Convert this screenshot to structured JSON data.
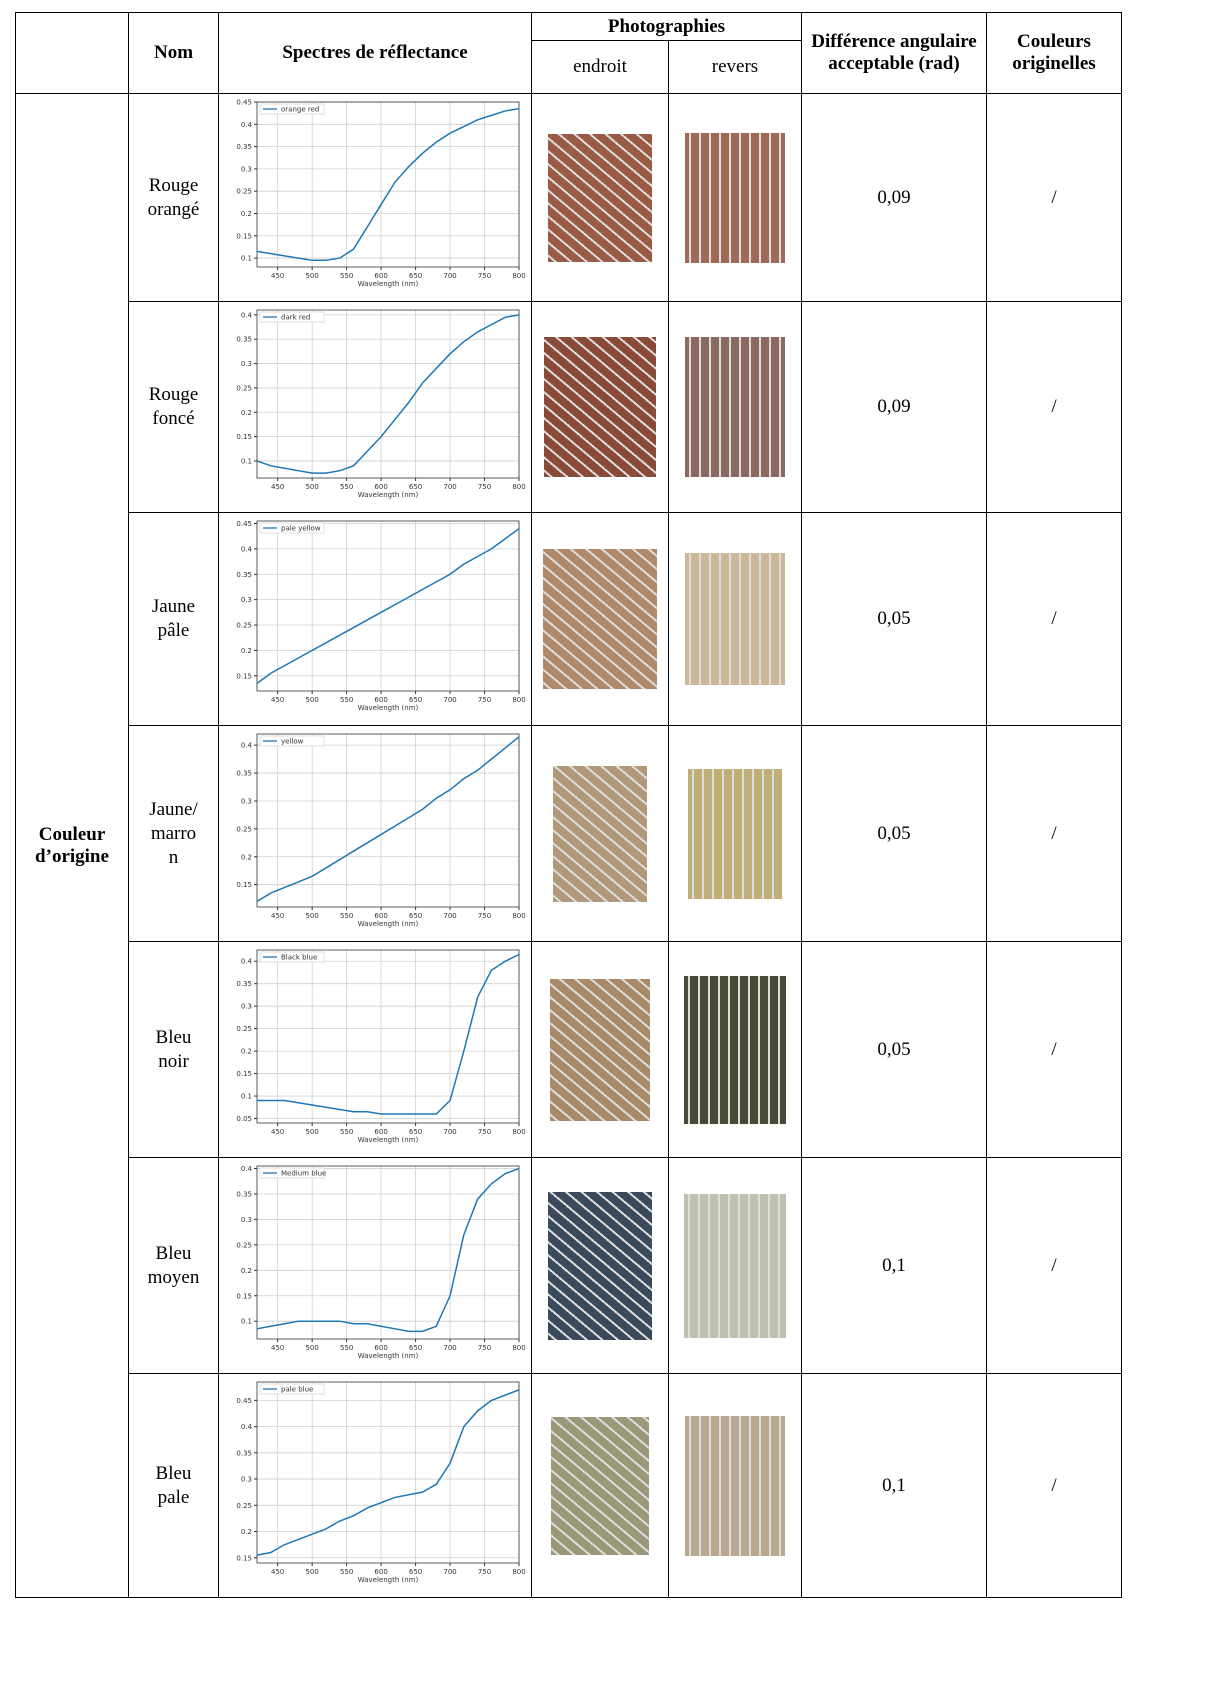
{
  "header": {
    "name": "Nom",
    "spectra": "Spectres de réflectance",
    "photos": "Photographies",
    "front": "endroit",
    "back": "revers",
    "difference": "Différence angulaire acceptable (rad)",
    "original": "Couleurs originelles"
  },
  "group": "Couleur d’origine",
  "rows": [
    {
      "name": "Rouge orangé",
      "difference": "0,09",
      "original": "/",
      "chart_data": {
        "type": "line",
        "xlabel": "Wavelength (nm)",
        "x": [
          420,
          440,
          460,
          480,
          500,
          520,
          540,
          560,
          580,
          600,
          620,
          640,
          660,
          680,
          700,
          720,
          740,
          760,
          780,
          800
        ],
        "series": [
          {
            "name": "orange red",
            "color": "#1f77b4",
            "values": [
              0.115,
              0.11,
              0.105,
              0.1,
              0.095,
              0.095,
              0.1,
              0.12,
              0.17,
              0.22,
              0.27,
              0.305,
              0.335,
              0.36,
              0.38,
              0.395,
              0.41,
              0.42,
              0.43,
              0.435
            ]
          }
        ],
        "xlim": [
          420,
          800
        ],
        "ylim": [
          0.08,
          0.45
        ],
        "xticks": [
          450,
          500,
          550,
          600,
          650,
          700,
          750,
          800
        ],
        "yticks": [
          0.1,
          0.15,
          0.2,
          0.25,
          0.3,
          0.35,
          0.4,
          0.45
        ],
        "grid": true
      }
    },
    {
      "name": "Rouge foncé",
      "difference": "0,09",
      "original": "/",
      "chart_data": {
        "type": "line",
        "xlabel": "Wavelength (nm)",
        "x": [
          420,
          440,
          460,
          480,
          500,
          520,
          540,
          560,
          580,
          600,
          620,
          640,
          660,
          680,
          700,
          720,
          740,
          760,
          780,
          800
        ],
        "series": [
          {
            "name": "dark red",
            "color": "#1f77b4",
            "values": [
              0.1,
              0.09,
              0.085,
              0.08,
              0.075,
              0.075,
              0.08,
              0.09,
              0.12,
              0.15,
              0.185,
              0.22,
              0.26,
              0.29,
              0.32,
              0.345,
              0.365,
              0.38,
              0.395,
              0.4
            ]
          }
        ],
        "xlim": [
          420,
          800
        ],
        "ylim": [
          0.065,
          0.41
        ],
        "xticks": [
          450,
          500,
          550,
          600,
          650,
          700,
          750,
          800
        ],
        "yticks": [
          0.1,
          0.15,
          0.2,
          0.25,
          0.3,
          0.35,
          0.4
        ],
        "grid": true
      }
    },
    {
      "name": "Jaune pâle",
      "difference": "0,05",
      "original": "/",
      "chart_data": {
        "type": "line",
        "xlabel": "Wavelength (nm)",
        "x": [
          420,
          440,
          460,
          480,
          500,
          520,
          540,
          560,
          580,
          600,
          620,
          640,
          660,
          680,
          700,
          720,
          740,
          760,
          780,
          800
        ],
        "series": [
          {
            "name": "pale yellow",
            "color": "#1f77b4",
            "values": [
              0.135,
              0.155,
              0.17,
              0.185,
              0.2,
              0.215,
              0.23,
              0.245,
              0.26,
              0.275,
              0.29,
              0.305,
              0.32,
              0.335,
              0.35,
              0.37,
              0.385,
              0.4,
              0.42,
              0.44
            ]
          }
        ],
        "xlim": [
          420,
          800
        ],
        "ylim": [
          0.12,
          0.455
        ],
        "xticks": [
          450,
          500,
          550,
          600,
          650,
          700,
          750,
          800
        ],
        "yticks": [
          0.15,
          0.2,
          0.25,
          0.3,
          0.35,
          0.4,
          0.45
        ],
        "grid": true
      }
    },
    {
      "name": "Jaune/ marro n",
      "difference": "0,05",
      "original": "/",
      "chart_data": {
        "type": "line",
        "xlabel": "Wavelength (nm)",
        "x": [
          420,
          440,
          460,
          480,
          500,
          520,
          540,
          560,
          580,
          600,
          620,
          640,
          660,
          680,
          700,
          720,
          740,
          760,
          780,
          800
        ],
        "series": [
          {
            "name": "yellow",
            "color": "#1f77b4",
            "values": [
              0.12,
              0.135,
              0.145,
              0.155,
              0.165,
              0.18,
              0.195,
              0.21,
              0.225,
              0.24,
              0.255,
              0.27,
              0.285,
              0.305,
              0.32,
              0.34,
              0.355,
              0.375,
              0.395,
              0.415
            ]
          }
        ],
        "xlim": [
          420,
          800
        ],
        "ylim": [
          0.11,
          0.42
        ],
        "xticks": [
          450,
          500,
          550,
          600,
          650,
          700,
          750,
          800
        ],
        "yticks": [
          0.15,
          0.2,
          0.25,
          0.3,
          0.35,
          0.4
        ],
        "grid": true
      }
    },
    {
      "name": "Bleu noir",
      "difference": "0,05",
      "original": "/",
      "chart_data": {
        "type": "line",
        "xlabel": "Wavelength (nm)",
        "x": [
          420,
          440,
          460,
          480,
          500,
          520,
          540,
          560,
          580,
          600,
          620,
          640,
          660,
          680,
          700,
          720,
          740,
          760,
          780,
          800
        ],
        "series": [
          {
            "name": "Black blue",
            "color": "#1f77b4",
            "values": [
              0.09,
              0.09,
              0.09,
              0.085,
              0.08,
              0.075,
              0.07,
              0.065,
              0.065,
              0.06,
              0.06,
              0.06,
              0.06,
              0.06,
              0.09,
              0.2,
              0.32,
              0.38,
              0.4,
              0.415
            ]
          }
        ],
        "xlim": [
          420,
          800
        ],
        "ylim": [
          0.04,
          0.425
        ],
        "xticks": [
          450,
          500,
          550,
          600,
          650,
          700,
          750,
          800
        ],
        "yticks": [
          0.05,
          0.1,
          0.15,
          0.2,
          0.25,
          0.3,
          0.35,
          0.4
        ],
        "grid": true
      }
    },
    {
      "name": "Bleu moyen",
      "difference": "0,1",
      "original": "/",
      "chart_data": {
        "type": "line",
        "xlabel": "Wavelength (nm)",
        "x": [
          420,
          440,
          460,
          480,
          500,
          520,
          540,
          560,
          580,
          600,
          620,
          640,
          660,
          680,
          700,
          720,
          740,
          760,
          780,
          800
        ],
        "series": [
          {
            "name": "Medium blue",
            "color": "#1f77b4",
            "values": [
              0.085,
              0.09,
              0.095,
              0.1,
              0.1,
              0.1,
              0.1,
              0.095,
              0.095,
              0.09,
              0.085,
              0.08,
              0.08,
              0.09,
              0.15,
              0.27,
              0.34,
              0.37,
              0.39,
              0.4
            ]
          }
        ],
        "xlim": [
          420,
          800
        ],
        "ylim": [
          0.065,
          0.405
        ],
        "xticks": [
          450,
          500,
          550,
          600,
          650,
          700,
          750,
          800
        ],
        "yticks": [
          0.1,
          0.15,
          0.2,
          0.25,
          0.3,
          0.35,
          0.4
        ],
        "grid": true
      }
    },
    {
      "name": "Bleu pale",
      "difference": "0,1",
      "original": "/",
      "chart_data": {
        "type": "line",
        "xlabel": "Wavelength (nm)",
        "x": [
          420,
          440,
          460,
          480,
          500,
          520,
          540,
          560,
          580,
          600,
          620,
          640,
          660,
          680,
          700,
          720,
          740,
          760,
          780,
          800
        ],
        "series": [
          {
            "name": "pale blue",
            "color": "#1f77b4",
            "values": [
              0.155,
              0.16,
              0.175,
              0.185,
              0.195,
              0.205,
              0.22,
              0.23,
              0.245,
              0.255,
              0.265,
              0.27,
              0.275,
              0.29,
              0.33,
              0.4,
              0.43,
              0.45,
              0.46,
              0.47
            ]
          }
        ],
        "xlim": [
          420,
          800
        ],
        "ylim": [
          0.14,
          0.485
        ],
        "xticks": [
          450,
          500,
          550,
          600,
          650,
          700,
          750,
          800
        ],
        "yticks": [
          0.15,
          0.2,
          0.25,
          0.3,
          0.35,
          0.4,
          0.45
        ],
        "grid": true
      }
    }
  ]
}
